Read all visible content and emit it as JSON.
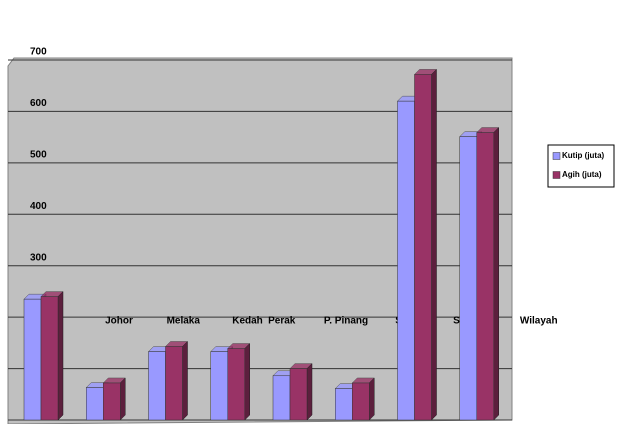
{
  "chart_data": {
    "type": "bar3d",
    "categories": [
      "Johor",
      "Melaka",
      "Kedah",
      "Perak",
      "P. Pinang",
      "Sabah",
      "Selangor",
      "Wilayah"
    ],
    "series": [
      {
        "name": "Kutip (juta)",
        "color": "#9999ff",
        "values": [
          235,
          63,
          133,
          133,
          86,
          61,
          620,
          551
        ]
      },
      {
        "name": "Agih (juta)",
        "color": "#993366",
        "values": [
          240,
          72,
          143,
          139,
          100,
          72,
          672,
          559
        ]
      }
    ],
    "ylim": [
      0,
      700
    ],
    "yticks": [
      0,
      100,
      200,
      300,
      400,
      500,
      600,
      700
    ],
    "grid": true,
    "legend": "right"
  }
}
